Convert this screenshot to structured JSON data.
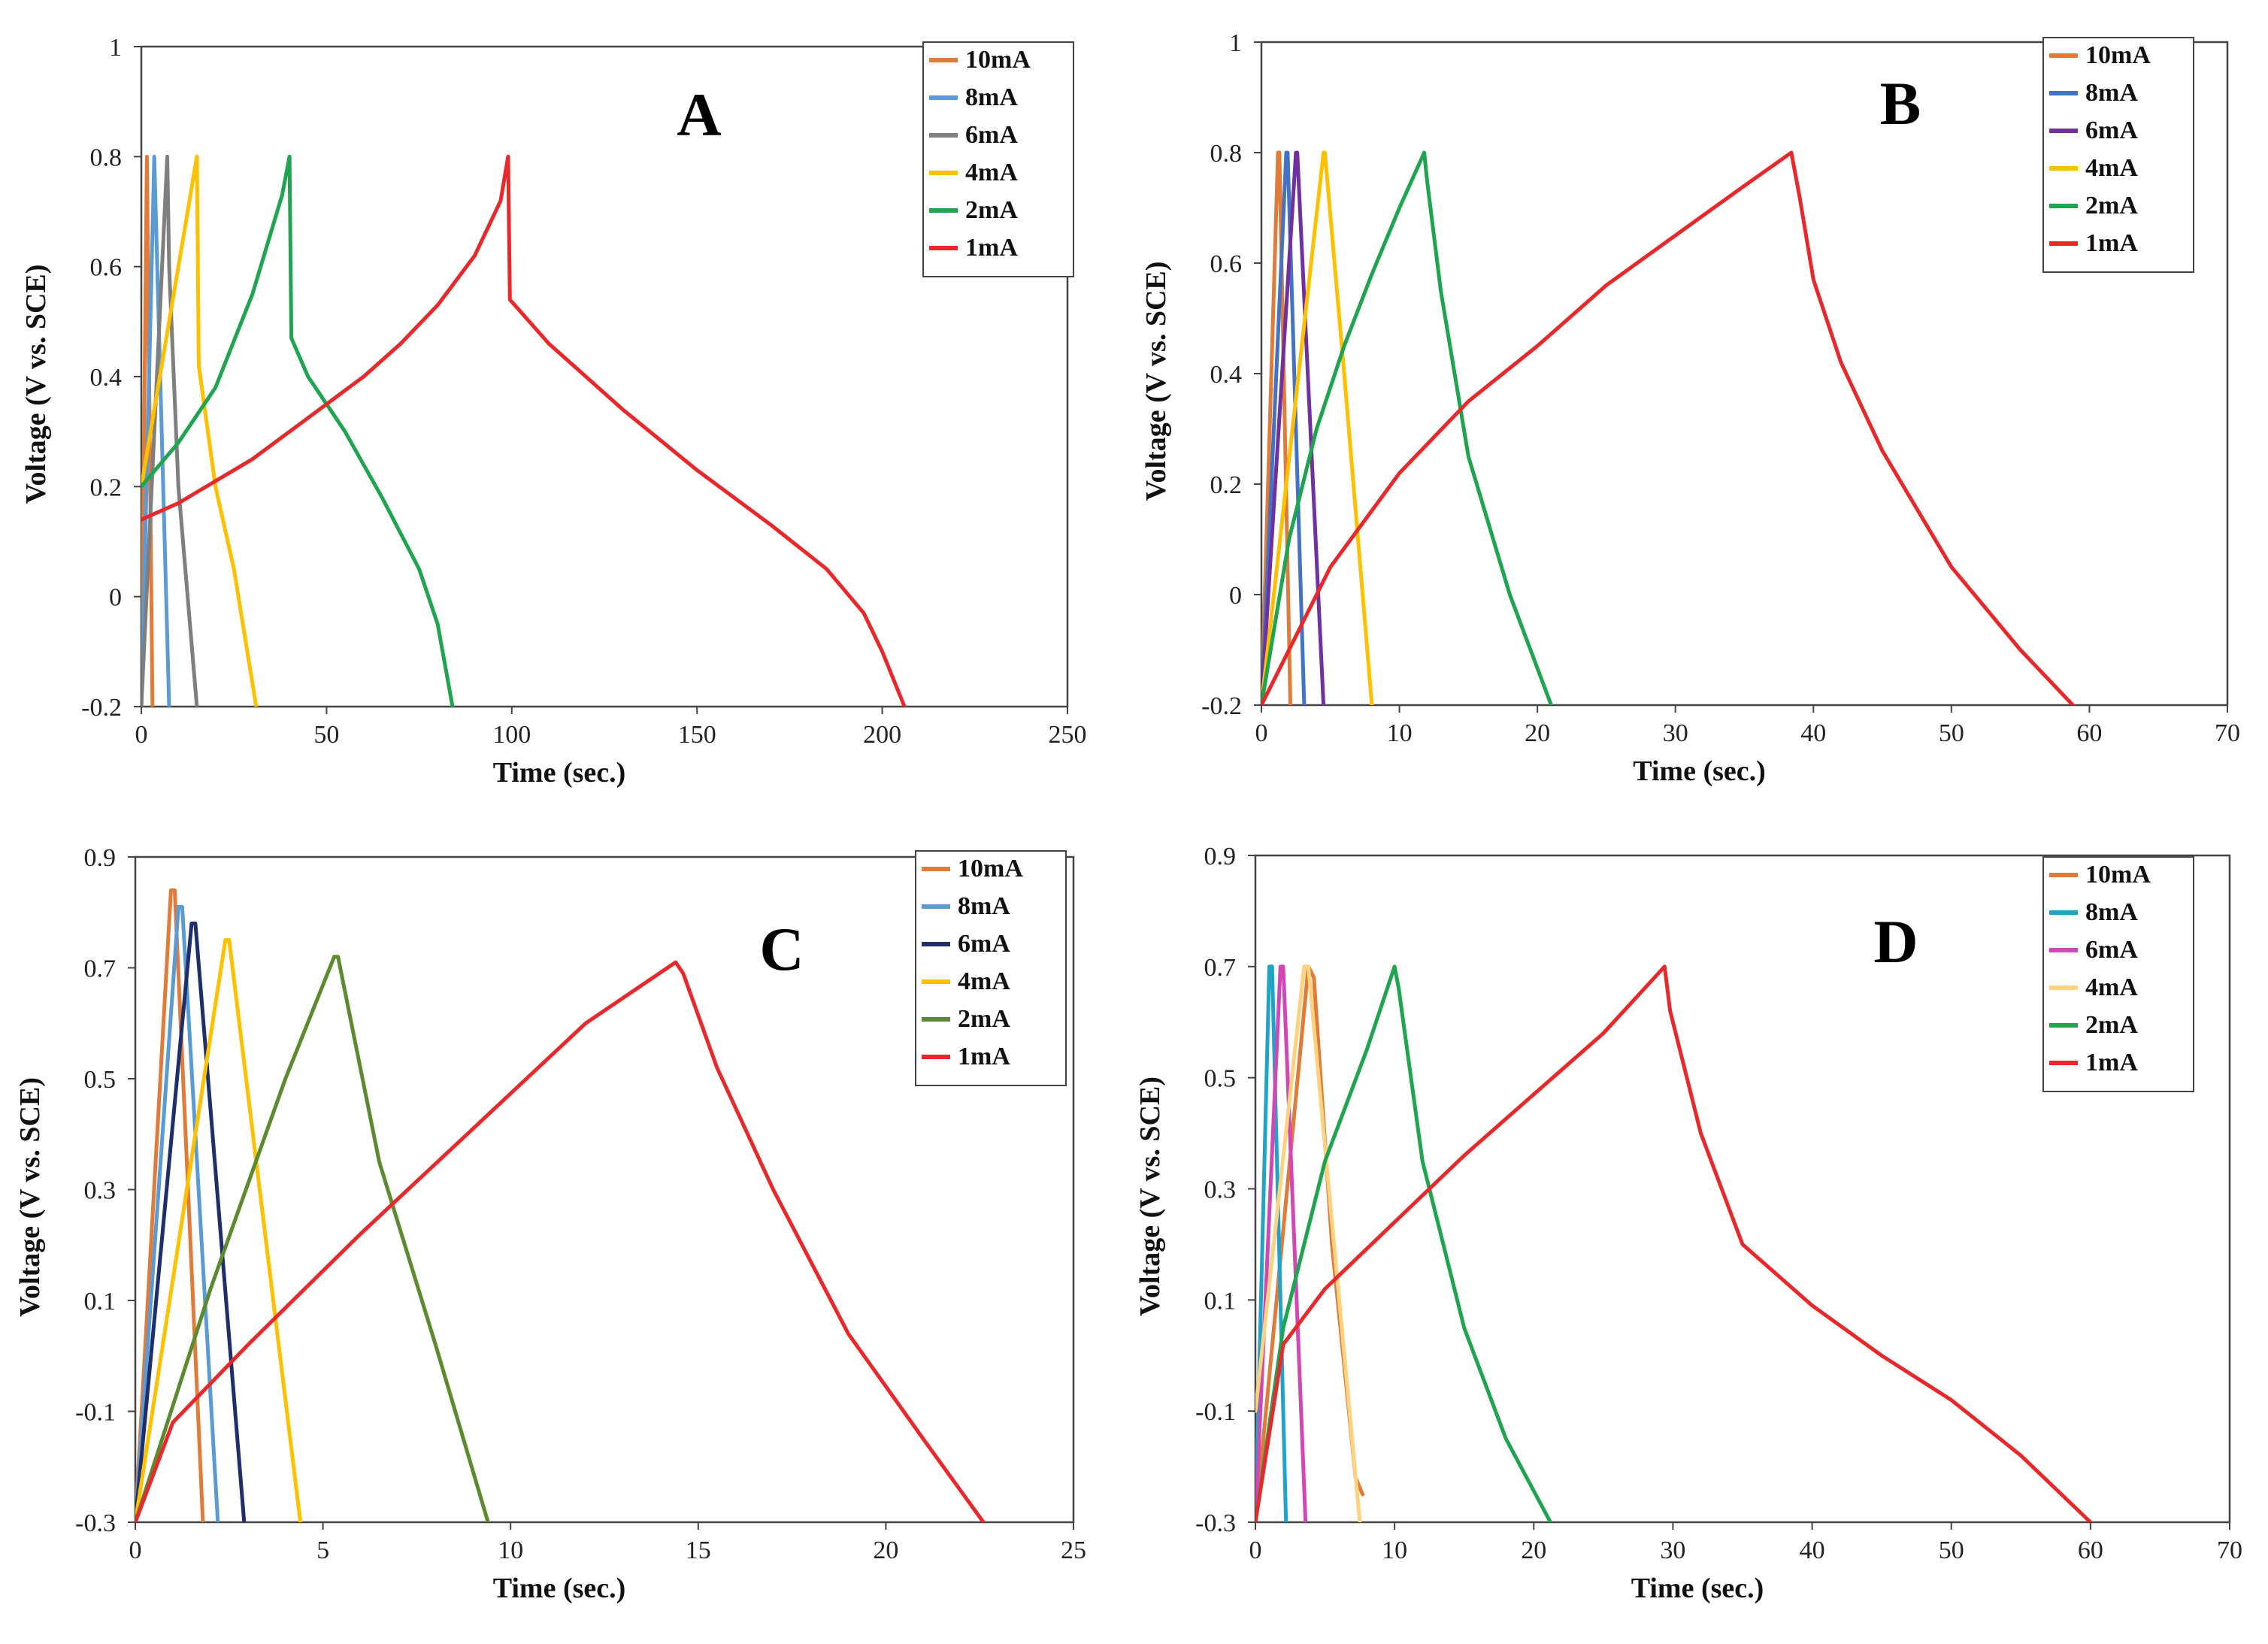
{
  "chart_data": [
    {
      "type": "line",
      "panel": "A",
      "xlabel": "Time (sec.)",
      "ylabel": "Voltage (V vs. SCE)",
      "xlim": [
        0,
        250
      ],
      "ylim": [
        -0.2,
        1
      ],
      "xticks": [
        0,
        50,
        100,
        150,
        200,
        250
      ],
      "yticks": [
        -0.2,
        0,
        0.2,
        0.4,
        0.6,
        0.8,
        1
      ],
      "ytick_labels": [
        "-0.2",
        "0",
        "0.2",
        "0.4",
        "0.6",
        "0.8",
        "1"
      ],
      "legend_position": "top-right",
      "series": [
        {
          "name": "10mA",
          "color": "#e07b39",
          "x": [
            0,
            1.5,
            1.5,
            3
          ],
          "y": [
            -0.2,
            0.8,
            0.8,
            -0.2
          ]
        },
        {
          "name": "8mA",
          "color": "#5b9bd5",
          "x": [
            0,
            3.5,
            3.5,
            7.5
          ],
          "y": [
            -0.2,
            0.8,
            0.8,
            -0.2
          ]
        },
        {
          "name": "6mA",
          "color": "#7f7f7f",
          "x": [
            0,
            7,
            7.5,
            10,
            15
          ],
          "y": [
            -0.2,
            0.8,
            0.6,
            0.2,
            -0.2
          ]
        },
        {
          "name": "4mA",
          "color": "#ffc000",
          "x": [
            0,
            5,
            10,
            15,
            15.5,
            20,
            25,
            31
          ],
          "y": [
            0.2,
            0.4,
            0.6,
            0.8,
            0.42,
            0.2,
            0.05,
            -0.2
          ]
        },
        {
          "name": "2mA",
          "color": "#1fa54f",
          "x": [
            0,
            10,
            20,
            30,
            38,
            40,
            40.5,
            45,
            55,
            65,
            75,
            80,
            84
          ],
          "y": [
            0.2,
            0.28,
            0.38,
            0.55,
            0.73,
            0.8,
            0.47,
            0.4,
            0.3,
            0.18,
            0.05,
            -0.05,
            -0.2
          ]
        },
        {
          "name": "1mA",
          "color": "#e8282b",
          "x": [
            0,
            10,
            20,
            30,
            40,
            50,
            60,
            70,
            80,
            90,
            97,
            99,
            99.5,
            110,
            130,
            150,
            170,
            185,
            195,
            200,
            206
          ],
          "y": [
            0.14,
            0.17,
            0.21,
            0.25,
            0.3,
            0.35,
            0.4,
            0.46,
            0.53,
            0.62,
            0.72,
            0.8,
            0.54,
            0.46,
            0.34,
            0.23,
            0.13,
            0.05,
            -0.03,
            -0.1,
            -0.2
          ]
        }
      ]
    },
    {
      "type": "line",
      "panel": "B",
      "xlabel": "Time (sec.)",
      "ylabel": "Voltage (V vs. SCE)",
      "xlim": [
        0,
        70
      ],
      "ylim": [
        -0.2,
        1
      ],
      "xticks": [
        0,
        10,
        20,
        30,
        40,
        50,
        60,
        70
      ],
      "yticks": [
        -0.2,
        0,
        0.2,
        0.4,
        0.6,
        0.8,
        1
      ],
      "ytick_labels": [
        "-0.2",
        "0",
        "0.2",
        "0.4",
        "0.6",
        "0.8",
        "1"
      ],
      "legend_position": "top-right",
      "series": [
        {
          "name": "10mA",
          "color": "#e07b39",
          "x": [
            0,
            1.2,
            1.3,
            2.1
          ],
          "y": [
            -0.2,
            0.8,
            0.8,
            -0.2
          ]
        },
        {
          "name": "8mA",
          "color": "#4472c4",
          "x": [
            0,
            1.8,
            1.9,
            3.1
          ],
          "y": [
            -0.2,
            0.8,
            0.8,
            -0.2
          ]
        },
        {
          "name": "6mA",
          "color": "#7030a0",
          "x": [
            0,
            2.5,
            2.6,
            4.5
          ],
          "y": [
            -0.2,
            0.8,
            0.8,
            -0.2
          ]
        },
        {
          "name": "4mA",
          "color": "#ffc000",
          "x": [
            0,
            4.5,
            4.6,
            6,
            8
          ],
          "y": [
            -0.2,
            0.8,
            0.8,
            0.4,
            -0.2
          ]
        },
        {
          "name": "2mA",
          "color": "#1fa54f",
          "x": [
            0,
            2,
            4,
            6,
            8,
            10,
            11.8,
            12,
            13,
            15,
            18,
            21
          ],
          "y": [
            -0.2,
            0.1,
            0.3,
            0.45,
            0.58,
            0.7,
            0.8,
            0.75,
            0.55,
            0.25,
            0.0,
            -0.2
          ]
        },
        {
          "name": "1mA",
          "color": "#e8282b",
          "x": [
            0,
            5,
            10,
            15,
            20,
            25,
            30,
            35,
            38.4,
            39,
            40,
            42,
            45,
            50,
            55,
            58.8
          ],
          "y": [
            -0.2,
            0.05,
            0.22,
            0.35,
            0.45,
            0.56,
            0.65,
            0.74,
            0.8,
            0.72,
            0.57,
            0.42,
            0.26,
            0.05,
            -0.1,
            -0.2
          ]
        }
      ]
    },
    {
      "type": "line",
      "panel": "C",
      "xlabel": "Time (sec.)",
      "ylabel": "Voltage (V vs. SCE)",
      "xlim": [
        0,
        25
      ],
      "ylim": [
        -0.3,
        0.9
      ],
      "xticks": [
        0,
        5,
        10,
        15,
        20,
        25
      ],
      "yticks": [
        -0.3,
        -0.1,
        0.1,
        0.3,
        0.5,
        0.7,
        0.9
      ],
      "ytick_labels": [
        "-0.3",
        "-0.1",
        "0.1",
        "0.3",
        "0.5",
        "0.7",
        "0.9"
      ],
      "legend_position": "top-right",
      "series": [
        {
          "name": "10mA",
          "color": "#e07b39",
          "x": [
            0,
            0.95,
            1.05,
            1.8
          ],
          "y": [
            -0.3,
            0.84,
            0.84,
            -0.3
          ]
        },
        {
          "name": "8mA",
          "color": "#5b9bd5",
          "x": [
            0,
            1.15,
            1.25,
            2.2
          ],
          "y": [
            -0.3,
            0.81,
            0.81,
            -0.3
          ]
        },
        {
          "name": "6mA",
          "color": "#1f2f6b",
          "x": [
            0,
            1.5,
            1.6,
            2.9
          ],
          "y": [
            -0.3,
            0.78,
            0.78,
            -0.3
          ]
        },
        {
          "name": "4mA",
          "color": "#ffc000",
          "x": [
            0,
            2.4,
            2.5,
            4.4
          ],
          "y": [
            -0.3,
            0.75,
            0.75,
            -0.3
          ]
        },
        {
          "name": "2mA",
          "color": "#5b8a2f",
          "x": [
            0,
            2,
            4,
            5.3,
            5.4,
            6.5,
            8,
            9.4
          ],
          "y": [
            -0.3,
            0.12,
            0.5,
            0.72,
            0.72,
            0.35,
            0.02,
            -0.3
          ]
        },
        {
          "name": "1mA",
          "color": "#e8282b",
          "x": [
            0,
            1,
            3,
            6,
            9,
            12,
            14.4,
            14.6,
            15.5,
            17,
            19,
            21,
            22.6
          ],
          "y": [
            -0.3,
            -0.12,
            0.02,
            0.22,
            0.41,
            0.6,
            0.71,
            0.69,
            0.52,
            0.3,
            0.04,
            -0.15,
            -0.3
          ]
        }
      ]
    },
    {
      "type": "line",
      "panel": "D",
      "xlabel": "Time (sec.)",
      "ylabel": "Voltage (V vs. SCE)",
      "xlim": [
        0,
        70
      ],
      "ylim": [
        -0.3,
        0.9
      ],
      "xticks": [
        0,
        10,
        20,
        30,
        40,
        50,
        60,
        70
      ],
      "yticks": [
        -0.3,
        -0.1,
        0.1,
        0.3,
        0.5,
        0.7,
        0.9
      ],
      "ytick_labels": [
        "-0.3",
        "-0.1",
        "0.1",
        "0.3",
        "0.5",
        "0.7",
        "0.9"
      ],
      "legend_position": "top-right",
      "series": [
        {
          "name": "10mA",
          "color": "#e07b39",
          "x": [
            0,
            3.8,
            4.2,
            5.5,
            7.2,
            7.7
          ],
          "y": [
            -0.3,
            0.7,
            0.68,
            0.2,
            -0.22,
            -0.25
          ]
        },
        {
          "name": "8mA",
          "color": "#1fa3c9",
          "x": [
            0,
            1,
            1.2,
            2.2
          ],
          "y": [
            -0.3,
            0.7,
            0.7,
            -0.3
          ]
        },
        {
          "name": "6mA",
          "color": "#d147b5",
          "x": [
            0,
            1.8,
            2,
            3.6
          ],
          "y": [
            -0.3,
            0.7,
            0.7,
            -0.3
          ]
        },
        {
          "name": "4mA",
          "color": "#ffd27f",
          "x": [
            0,
            3.5,
            3.8,
            7.5
          ],
          "y": [
            -0.1,
            0.7,
            0.7,
            -0.3
          ]
        },
        {
          "name": "2mA",
          "color": "#1fa54f",
          "x": [
            0,
            2,
            5,
            8,
            10,
            10.3,
            12,
            15,
            18,
            21.2
          ],
          "y": [
            -0.3,
            0.05,
            0.35,
            0.55,
            0.7,
            0.66,
            0.35,
            0.05,
            -0.15,
            -0.3
          ]
        },
        {
          "name": "1mA",
          "color": "#e8282b",
          "x": [
            0,
            2,
            5,
            10,
            15,
            20,
            25,
            29.4,
            29.8,
            32,
            35,
            40,
            45,
            50,
            55,
            60
          ],
          "y": [
            -0.3,
            0.02,
            0.12,
            0.24,
            0.36,
            0.47,
            0.58,
            0.7,
            0.62,
            0.4,
            0.2,
            0.09,
            0.0,
            -0.08,
            -0.18,
            -0.3
          ]
        }
      ]
    }
  ]
}
